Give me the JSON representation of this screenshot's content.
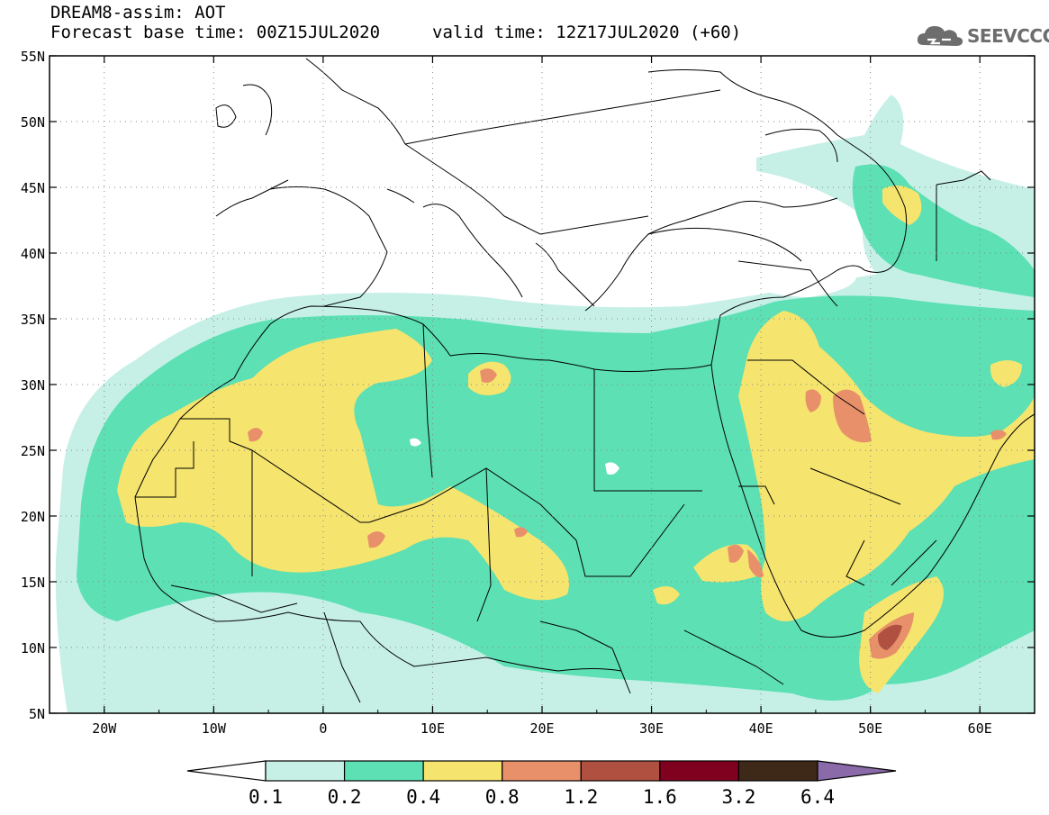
{
  "header": {
    "title": "DREAM8-assim: AOT",
    "base_time": "Forecast base time: 00Z15JUL2020",
    "valid_time": "valid time: 12Z17JUL2020 (+60)"
  },
  "logo": {
    "name": "cloud-logo-icon",
    "text": "SEEVCCC"
  },
  "map": {
    "lon_range": [
      -25,
      65
    ],
    "lat_range": [
      5,
      55
    ],
    "lat_ticks": [
      "5N",
      "10N",
      "15N",
      "20N",
      "25N",
      "30N",
      "35N",
      "40N",
      "45N",
      "50N",
      "55N"
    ],
    "lon_ticks": [
      "20W",
      "10W",
      "0",
      "10E",
      "20E",
      "30E",
      "40E",
      "50E",
      "60E"
    ],
    "grid": "dotted"
  },
  "colorbar": {
    "labels": [
      "0.1",
      "0.2",
      "0.4",
      "0.8",
      "1.2",
      "1.6",
      "3.2",
      "6.4"
    ],
    "colors": [
      "#c6f0e6",
      "#5ce0b4",
      "#f5e46e",
      "#e8906a",
      "#b05040",
      "#800020",
      "#3e2817",
      "#8a6aa8"
    ]
  }
}
